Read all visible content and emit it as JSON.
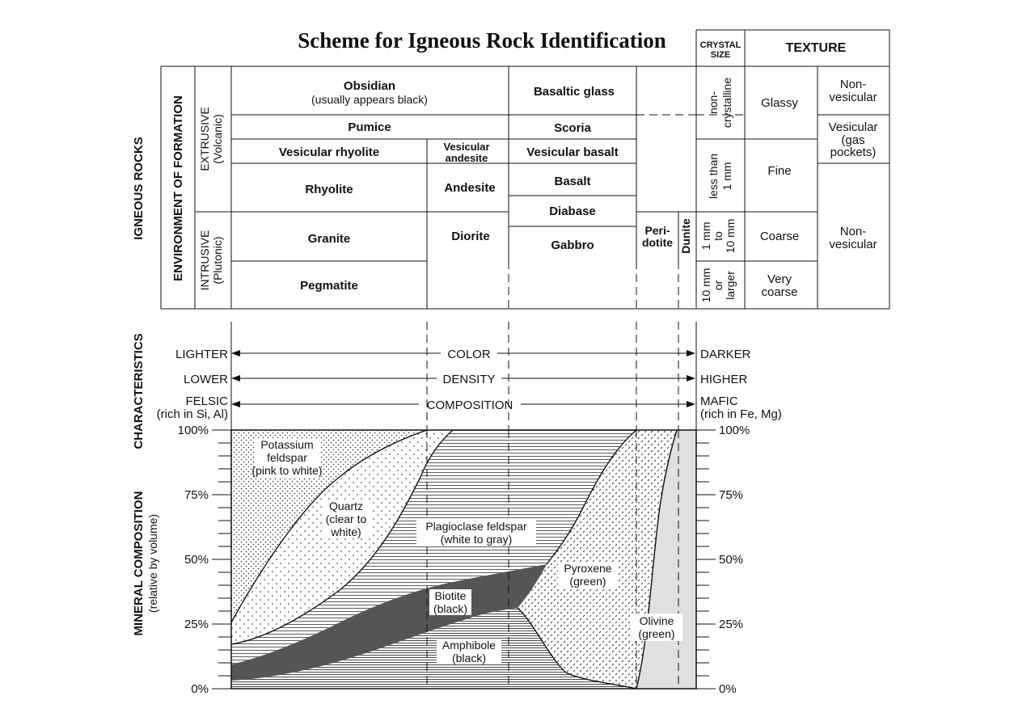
{
  "title": "Scheme for Igneous Rock Identification",
  "side_labels": {
    "igneous_rocks": "IGNEOUS ROCKS",
    "environment": "ENVIRONMENT OF FORMATION",
    "extrusive": [
      "EXTRUSIVE",
      "(Volcanic)"
    ],
    "intrusive": [
      "INTRUSIVE",
      "(Plutonic)"
    ],
    "characteristics": "CHARACTERISTICS",
    "mineral_composition": [
      "MINERAL COMPOSITION",
      "(relative by volume)"
    ]
  },
  "headers": {
    "crystal_size": [
      "CRYSTAL",
      "SIZE"
    ],
    "texture": "TEXTURE"
  },
  "rocks": {
    "obsidian": [
      "Obsidian",
      "(usually appears black)"
    ],
    "basaltic_glass": "Basaltic glass",
    "pumice": "Pumice",
    "scoria": "Scoria",
    "vesicular_rhyolite": "Vesicular rhyolite",
    "vesicular_andesite": [
      "Vesicular",
      "andesite"
    ],
    "vesicular_basalt": "Vesicular basalt",
    "rhyolite": "Rhyolite",
    "andesite": "Andesite",
    "basalt": "Basalt",
    "diabase": "Diabase",
    "granite": "Granite",
    "diorite": "Diorite",
    "gabbro": "Gabbro",
    "peridotite": [
      "Peri-",
      "dotite"
    ],
    "dunite": "Dunite",
    "pegmatite": "Pegmatite"
  },
  "crystal_sizes": {
    "noncrystalline": [
      "non-",
      "crystalline"
    ],
    "less_than_1mm": [
      "less than",
      "1 mm"
    ],
    "1_to_10mm": [
      "1 mm",
      "to",
      "10 mm"
    ],
    "10mm_or_larger": [
      "10 mm",
      "or",
      "larger"
    ]
  },
  "textures": {
    "glassy": "Glassy",
    "fine": "Fine",
    "coarse": "Coarse",
    "very_coarse": [
      "Very",
      "coarse"
    ],
    "nonvesicular_top": [
      "Non-",
      "vesicular"
    ],
    "vesicular": [
      "Vesicular",
      "(gas",
      "pockets)"
    ],
    "nonvesicular_bottom": [
      "Non-",
      "vesicular"
    ]
  },
  "characteristics": {
    "color": {
      "left": "LIGHTER",
      "label": "COLOR",
      "right": "DARKER"
    },
    "density": {
      "left": "LOWER",
      "label": "DENSITY",
      "right": "HIGHER"
    },
    "composition": {
      "left": [
        "FELSIC",
        "(rich in Si, Al)"
      ],
      "label": "COMPOSITION",
      "right": [
        "MAFIC",
        "(rich in Fe, Mg)"
      ]
    }
  },
  "chart_data": {
    "type": "area",
    "y_ticks": [
      "100%",
      "75%",
      "50%",
      "25%",
      "0%"
    ],
    "minerals": {
      "potassium_feldspar": [
        "Potassium",
        "feldspar",
        "(pink to white)"
      ],
      "quartz": [
        "Quartz",
        "(clear to",
        "white)"
      ],
      "plagioclase": [
        "Plagioclase feldspar",
        "(white to gray)"
      ],
      "biotite": [
        "Biotite",
        "(black)"
      ],
      "amphibole": [
        "Amphibole",
        "(black)"
      ],
      "pyroxene": [
        "Pyroxene",
        "(green)"
      ],
      "olivine": [
        "Olivine",
        "(green)"
      ]
    }
  }
}
